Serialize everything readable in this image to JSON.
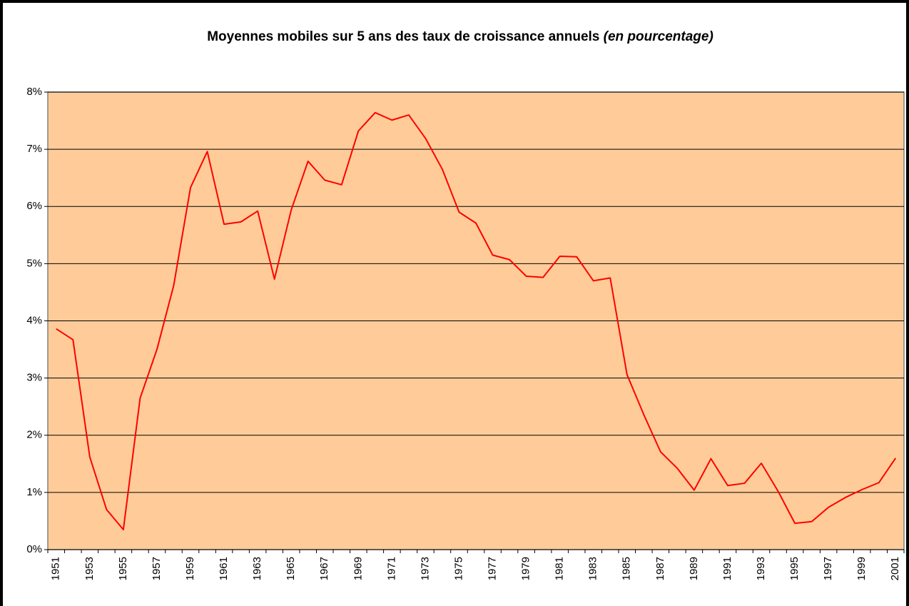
{
  "chart_data": {
    "type": "line",
    "title": "Moyennes mobiles sur 5 ans des taux de croissance annuels",
    "title_note": "(en pourcentage)",
    "categories": [
      "1951",
      null,
      "1953",
      null,
      "1955",
      null,
      "1957",
      null,
      "1959",
      null,
      "1961",
      null,
      "1963",
      null,
      "1965",
      null,
      "1967",
      null,
      "1969",
      null,
      "1971",
      null,
      "1973",
      null,
      "1975",
      null,
      "1977",
      null,
      "1979",
      null,
      "1981",
      null,
      "1983",
      null,
      "1985",
      null,
      "1987",
      null,
      "1989",
      null,
      "1991",
      null,
      "1993",
      null,
      "1995",
      null,
      "1997",
      null,
      "1999",
      null,
      "2001"
    ],
    "series": [
      {
        "color": "#ff0000",
        "values": [
          3.86,
          3.67,
          1.62,
          0.7,
          0.35,
          2.65,
          3.5,
          4.62,
          6.33,
          6.96,
          5.69,
          5.73,
          5.92,
          4.73,
          5.94,
          6.79,
          6.46,
          6.38,
          7.32,
          7.64,
          7.51,
          7.6,
          7.19,
          6.65,
          5.9,
          5.71,
          5.15,
          5.07,
          4.78,
          4.76,
          5.13,
          5.12,
          4.7,
          4.75,
          3.06,
          2.36,
          1.71,
          1.42,
          1.04,
          1.59,
          1.12,
          1.16,
          1.51,
          1.02,
          0.46,
          0.49,
          0.74,
          0.91,
          1.05,
          1.17,
          1.6
        ]
      }
    ],
    "ylim": [
      0,
      8
    ],
    "yticks": [
      {
        "value": 0,
        "label": "0%"
      },
      {
        "value": 1,
        "label": "1%"
      },
      {
        "value": 2,
        "label": "2%"
      },
      {
        "value": 3,
        "label": "3%"
      },
      {
        "value": 4,
        "label": "4%"
      },
      {
        "value": 5,
        "label": "5%"
      },
      {
        "value": 6,
        "label": "6%"
      },
      {
        "value": 7,
        "label": "7%"
      },
      {
        "value": 8,
        "label": "8%"
      }
    ],
    "grid": true,
    "plot_background": "#ffcc99"
  }
}
